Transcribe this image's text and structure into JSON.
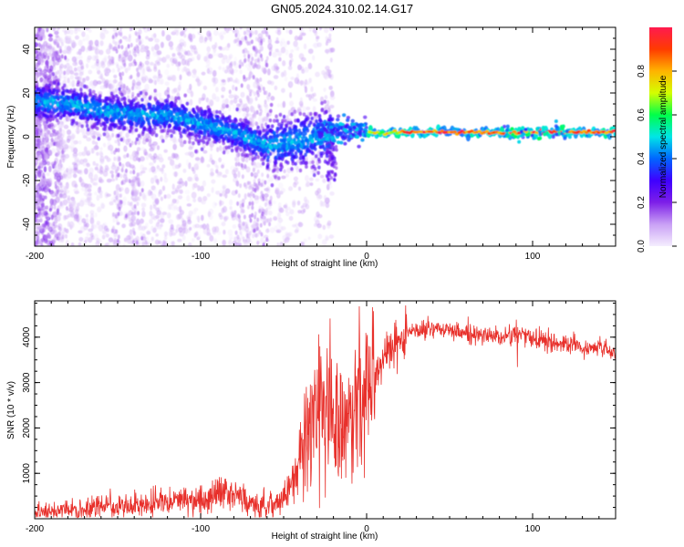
{
  "title": "GN05.2024.310.02.14.G17",
  "chart_data": [
    {
      "type": "heatmap",
      "xlabel": "Height of straight line (km)",
      "ylabel": "Frequency (Hz)",
      "xlim": [
        -200,
        150
      ],
      "ylim": [
        -50,
        50
      ],
      "x_ticks": [
        -200,
        -100,
        0,
        100
      ],
      "y_ticks": [
        -40,
        -20,
        0,
        20,
        40
      ],
      "colorbar": {
        "label": "Normalized spectral amplitude",
        "range": [
          0,
          1
        ],
        "ticks": [
          "0.0",
          "0.2",
          "0.4",
          "0.6",
          "0.8"
        ],
        "colors": [
          "#f5eefe",
          "#c9a0f5",
          "#7d1fe8",
          "#3f00ff",
          "#0066ff",
          "#00e6e6",
          "#00ff4a",
          "#d4ff00",
          "#ffb300",
          "#ff3b00",
          "#ff1a4f"
        ]
      },
      "trend": {
        "x": [
          -200,
          -180,
          -160,
          -140,
          -120,
          -100,
          -80,
          -60,
          -40,
          -30,
          -20,
          -10,
          0,
          20,
          50,
          100,
          150
        ],
        "y": [
          16,
          15,
          12,
          10,
          10,
          6,
          2,
          -4,
          -2,
          0,
          1,
          2,
          2,
          2,
          2,
          2,
          2
        ]
      }
    },
    {
      "type": "line",
      "xlabel": "Height of straight line (km)",
      "ylabel": "SNR (10 * v/v)",
      "xlim": [
        -200,
        150
      ],
      "ylim": [
        0,
        4800
      ],
      "x_ticks": [
        -200,
        -100,
        0,
        100
      ],
      "y_ticks": [
        1000,
        2000,
        3000,
        4000
      ],
      "color": "#e8302b",
      "series": [
        {
          "x": [
            -200,
            -190,
            -180,
            -170,
            -160,
            -150,
            -140,
            -130,
            -120,
            -110,
            -100,
            -90,
            -85,
            -80,
            -70,
            -60,
            -55,
            -50,
            -45,
            -40,
            -35,
            -30,
            -25,
            -20,
            -15,
            -10,
            -5,
            0,
            5,
            10,
            15,
            20,
            25,
            30,
            40,
            50,
            60,
            70,
            80,
            90,
            95,
            100,
            110,
            120,
            130,
            140,
            150
          ],
          "y": [
            150,
            170,
            200,
            230,
            260,
            270,
            300,
            340,
            380,
            400,
            420,
            500,
            600,
            450,
            350,
            300,
            350,
            500,
            800,
            1400,
            2000,
            2400,
            2500,
            2300,
            2000,
            2000,
            2400,
            2800,
            3100,
            3500,
            3800,
            4000,
            4100,
            4150,
            4200,
            4150,
            4100,
            4050,
            4000,
            4050,
            4100,
            3950,
            3900,
            3850,
            3800,
            3750,
            3700
          ]
        }
      ]
    }
  ]
}
